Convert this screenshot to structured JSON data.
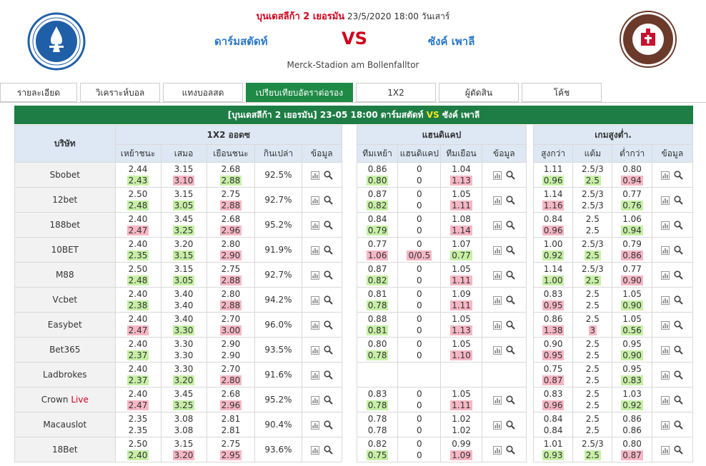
{
  "header": {
    "league": "บุนเดสลีก้า 2 เยอรมัน",
    "datetime": "23/5/2020 18:00 วันเสาร์",
    "home": "ดาร์มสตัดท์",
    "vs": "VS",
    "away": "ซังค์ เพาลี",
    "venue": "Merck-Stadion am Bollenfalltor",
    "home_logo": "darmstadt-crest-icon",
    "away_logo": "st-pauli-crest-icon"
  },
  "tabs": [
    {
      "label": "รายละเอียด",
      "active": false
    },
    {
      "label": "วิเคราะห์บอล",
      "active": false
    },
    {
      "label": "แทงบอลสด",
      "active": false
    },
    {
      "label": "เปรียบเทียบอัตราต่อรอง",
      "active": true
    },
    {
      "label": "1X2",
      "active": false
    },
    {
      "label": "ผู้ตัดสิน",
      "active": false
    },
    {
      "label": "โค้ช",
      "active": false
    }
  ],
  "title_bar": {
    "league": "[บุนเดสลีก้า 2 เยอรมัน]",
    "date": "23-05 18:00",
    "home": "ดาร์มสตัดท์",
    "vs": "VS",
    "away": "ซังค์ เพาลี"
  },
  "table": {
    "company_header": "บริษัท",
    "groups": [
      "1X2 ออดซ",
      "แฮนดิแคป",
      "เกมสูงต่ำ."
    ],
    "cols_1x2": [
      "เหย้าชนะ",
      "เสมอ",
      "เยือนชนะ",
      "กินเปล่า",
      "ข้อมูล"
    ],
    "cols_hdp": [
      "ทีมเหย้า",
      "แฮนดิแคป",
      "ทีมเยือน",
      "ข้อมูล"
    ],
    "cols_ou": [
      "สูงกว่า",
      "แต้ม",
      "ต่ำกว่า",
      "ข้อมูล"
    ],
    "live_label": "Live",
    "rows": [
      {
        "company": "Sbobet",
        "live": false,
        "x": [
          [
            "2.44",
            ""
          ],
          [
            "2.43",
            "up"
          ]
        ],
        "d": [
          [
            "3.15",
            ""
          ],
          [
            "3.10",
            "dn"
          ]
        ],
        "a": [
          [
            "2.68",
            ""
          ],
          [
            "2.88",
            "up"
          ]
        ],
        "ret": "92.5%",
        "h": [
          [
            "0.86",
            ""
          ],
          [
            "0.80",
            "up"
          ]
        ],
        "hl": [
          [
            "0",
            ""
          ],
          [
            "0",
            ""
          ]
        ],
        "ha": [
          [
            "1.04",
            ""
          ],
          [
            "1.13",
            "dn"
          ]
        ],
        "o": [
          [
            "1.11",
            ""
          ],
          [
            "0.96",
            "up"
          ]
        ],
        "ol": [
          [
            "2.5/3",
            ""
          ],
          [
            "2.5",
            "up"
          ]
        ],
        "u": [
          [
            "0.80",
            ""
          ],
          [
            "0.94",
            "dn"
          ]
        ]
      },
      {
        "company": "12bet",
        "live": false,
        "x": [
          [
            "2.50",
            ""
          ],
          [
            "2.48",
            "up"
          ]
        ],
        "d": [
          [
            "3.15",
            ""
          ],
          [
            "3.05",
            "up"
          ]
        ],
        "a": [
          [
            "2.75",
            ""
          ],
          [
            "2.88",
            "dn"
          ]
        ],
        "ret": "92.7%",
        "h": [
          [
            "0.87",
            ""
          ],
          [
            "0.82",
            "up"
          ]
        ],
        "hl": [
          [
            "0",
            ""
          ],
          [
            "0",
            ""
          ]
        ],
        "ha": [
          [
            "1.05",
            ""
          ],
          [
            "1.11",
            "dn"
          ]
        ],
        "o": [
          [
            "1.14",
            ""
          ],
          [
            "1.16",
            "dn"
          ]
        ],
        "ol": [
          [
            "2.5/3",
            ""
          ],
          [
            "2.5/3",
            ""
          ]
        ],
        "u": [
          [
            "0.77",
            ""
          ],
          [
            "0.76",
            "up"
          ]
        ]
      },
      {
        "company": "188bet",
        "live": false,
        "x": [
          [
            "2.40",
            ""
          ],
          [
            "2.47",
            "dn"
          ]
        ],
        "d": [
          [
            "3.45",
            ""
          ],
          [
            "3.25",
            "up"
          ]
        ],
        "a": [
          [
            "2.68",
            ""
          ],
          [
            "2.96",
            "dn"
          ]
        ],
        "ret": "95.2%",
        "h": [
          [
            "0.84",
            ""
          ],
          [
            "0.79",
            "up"
          ]
        ],
        "hl": [
          [
            "0",
            ""
          ],
          [
            "0",
            ""
          ]
        ],
        "ha": [
          [
            "1.08",
            ""
          ],
          [
            "1.14",
            "dn"
          ]
        ],
        "o": [
          [
            "0.84",
            ""
          ],
          [
            "0.96",
            "dn"
          ]
        ],
        "ol": [
          [
            "2.5",
            ""
          ],
          [
            "2.5",
            ""
          ]
        ],
        "u": [
          [
            "1.06",
            ""
          ],
          [
            "0.94",
            "up"
          ]
        ]
      },
      {
        "company": "10BET",
        "live": false,
        "x": [
          [
            "2.40",
            ""
          ],
          [
            "2.35",
            "up"
          ]
        ],
        "d": [
          [
            "3.20",
            ""
          ],
          [
            "3.15",
            "up"
          ]
        ],
        "a": [
          [
            "2.80",
            ""
          ],
          [
            "2.90",
            "dn"
          ]
        ],
        "ret": "91.9%",
        "h": [
          [
            "0.77",
            ""
          ],
          [
            "1.06",
            "dn"
          ]
        ],
        "hl": [
          [
            "0",
            ""
          ],
          [
            "0/0.5",
            "dn"
          ]
        ],
        "ha": [
          [
            "1.07",
            ""
          ],
          [
            "0.77",
            "up"
          ]
        ],
        "o": [
          [
            "1.00",
            ""
          ],
          [
            "0.92",
            "up"
          ]
        ],
        "ol": [
          [
            "2.5/3",
            ""
          ],
          [
            "2.5",
            "up"
          ]
        ],
        "u": [
          [
            "0.79",
            ""
          ],
          [
            "0.86",
            "dn"
          ]
        ]
      },
      {
        "company": "M88",
        "live": false,
        "x": [
          [
            "2.50",
            ""
          ],
          [
            "2.48",
            "up"
          ]
        ],
        "d": [
          [
            "3.15",
            ""
          ],
          [
            "3.05",
            "up"
          ]
        ],
        "a": [
          [
            "2.75",
            ""
          ],
          [
            "2.88",
            "dn"
          ]
        ],
        "ret": "92.7%",
        "h": [
          [
            "0.87",
            ""
          ],
          [
            "0.82",
            "up"
          ]
        ],
        "hl": [
          [
            "0",
            ""
          ],
          [
            "0",
            ""
          ]
        ],
        "ha": [
          [
            "1.05",
            ""
          ],
          [
            "1.11",
            "dn"
          ]
        ],
        "o": [
          [
            "1.14",
            ""
          ],
          [
            "1.00",
            "up"
          ]
        ],
        "ol": [
          [
            "2.5/3",
            ""
          ],
          [
            "2.5",
            "up"
          ]
        ],
        "u": [
          [
            "0.77",
            ""
          ],
          [
            "0.90",
            "dn"
          ]
        ]
      },
      {
        "company": "Vcbet",
        "live": false,
        "x": [
          [
            "2.40",
            ""
          ],
          [
            "2.38",
            "up"
          ]
        ],
        "d": [
          [
            "3.40",
            ""
          ],
          [
            "3.40",
            ""
          ]
        ],
        "a": [
          [
            "2.80",
            ""
          ],
          [
            "2.88",
            "dn"
          ]
        ],
        "ret": "94.2%",
        "h": [
          [
            "0.81",
            ""
          ],
          [
            "0.78",
            "up"
          ]
        ],
        "hl": [
          [
            "0",
            ""
          ],
          [
            "0",
            ""
          ]
        ],
        "ha": [
          [
            "1.09",
            ""
          ],
          [
            "1.11",
            "dn"
          ]
        ],
        "o": [
          [
            "0.83",
            ""
          ],
          [
            "0.95",
            "dn"
          ]
        ],
        "ol": [
          [
            "2.5",
            ""
          ],
          [
            "2.5",
            ""
          ]
        ],
        "u": [
          [
            "1.05",
            ""
          ],
          [
            "0.90",
            "up"
          ]
        ]
      },
      {
        "company": "Easybet",
        "live": false,
        "x": [
          [
            "2.40",
            ""
          ],
          [
            "2.47",
            "dn"
          ]
        ],
        "d": [
          [
            "3.40",
            ""
          ],
          [
            "3.30",
            "up"
          ]
        ],
        "a": [
          [
            "2.70",
            ""
          ],
          [
            "3.00",
            "dn"
          ]
        ],
        "ret": "96.0%",
        "h": [
          [
            "0.88",
            ""
          ],
          [
            "0.81",
            "up"
          ]
        ],
        "hl": [
          [
            "0",
            ""
          ],
          [
            "0",
            ""
          ]
        ],
        "ha": [
          [
            "1.05",
            ""
          ],
          [
            "1.13",
            "dn"
          ]
        ],
        "o": [
          [
            "0.86",
            ""
          ],
          [
            "1.38",
            "dn"
          ]
        ],
        "ol": [
          [
            "2.5",
            ""
          ],
          [
            "3",
            "dn"
          ]
        ],
        "u": [
          [
            "1.05",
            ""
          ],
          [
            "0.56",
            "up"
          ]
        ]
      },
      {
        "company": "Bet365",
        "live": false,
        "x": [
          [
            "2.40",
            ""
          ],
          [
            "2.37",
            "up"
          ]
        ],
        "d": [
          [
            "3.30",
            ""
          ],
          [
            "3.30",
            ""
          ]
        ],
        "a": [
          [
            "2.90",
            ""
          ],
          [
            "2.90",
            ""
          ]
        ],
        "ret": "93.5%",
        "h": [
          [
            "0.80",
            ""
          ],
          [
            "0.78",
            "up"
          ]
        ],
        "hl": [
          [
            "0",
            ""
          ],
          [
            "0",
            ""
          ]
        ],
        "ha": [
          [
            "1.05",
            ""
          ],
          [
            "1.10",
            "dn"
          ]
        ],
        "o": [
          [
            "0.90",
            ""
          ],
          [
            "0.95",
            "dn"
          ]
        ],
        "ol": [
          [
            "2.5",
            ""
          ],
          [
            "2.5",
            ""
          ]
        ],
        "u": [
          [
            "0.95",
            ""
          ],
          [
            "0.90",
            "up"
          ]
        ]
      },
      {
        "company": "Ladbrokes",
        "live": false,
        "x": [
          [
            "2.40",
            ""
          ],
          [
            "2.37",
            "up"
          ]
        ],
        "d": [
          [
            "3.30",
            ""
          ],
          [
            "3.20",
            "up"
          ]
        ],
        "a": [
          [
            "2.70",
            ""
          ],
          [
            "2.80",
            "dn"
          ]
        ],
        "ret": "91.6%",
        "h": null,
        "hl": null,
        "ha": null,
        "o": [
          [
            "0.75",
            ""
          ],
          [
            "0.87",
            "dn"
          ]
        ],
        "ol": [
          [
            "2.5",
            ""
          ],
          [
            "2.5",
            ""
          ]
        ],
        "u": [
          [
            "0.95",
            ""
          ],
          [
            "0.83",
            "up"
          ]
        ]
      },
      {
        "company": "Crown",
        "live": true,
        "x": [
          [
            "2.40",
            ""
          ],
          [
            "2.47",
            "dn"
          ]
        ],
        "d": [
          [
            "3.45",
            ""
          ],
          [
            "3.25",
            "up"
          ]
        ],
        "a": [
          [
            "2.68",
            ""
          ],
          [
            "2.96",
            "dn"
          ]
        ],
        "ret": "95.2%",
        "h": [
          [
            "0.83",
            ""
          ],
          [
            "0.78",
            "up"
          ]
        ],
        "hl": [
          [
            "0",
            ""
          ],
          [
            "0",
            ""
          ]
        ],
        "ha": [
          [
            "1.05",
            ""
          ],
          [
            "1.11",
            "dn"
          ]
        ],
        "o": [
          [
            "0.83",
            ""
          ],
          [
            "0.96",
            "dn"
          ]
        ],
        "ol": [
          [
            "2.5",
            ""
          ],
          [
            "2.5",
            ""
          ]
        ],
        "u": [
          [
            "1.03",
            ""
          ],
          [
            "0.92",
            "up"
          ]
        ]
      },
      {
        "company": "Macauslot",
        "live": false,
        "x": [
          [
            "2.35",
            ""
          ],
          [
            "2.35",
            ""
          ]
        ],
        "d": [
          [
            "3.08",
            ""
          ],
          [
            "3.08",
            ""
          ]
        ],
        "a": [
          [
            "2.81",
            ""
          ],
          [
            "2.81",
            ""
          ]
        ],
        "ret": "90.4%",
        "h": [
          [
            "0.78",
            ""
          ],
          [
            "0.78",
            ""
          ]
        ],
        "hl": [
          [
            "0",
            ""
          ],
          [
            "0",
            ""
          ]
        ],
        "ha": [
          [
            "1.02",
            ""
          ],
          [
            "1.02",
            ""
          ]
        ],
        "o": [
          [
            "0.84",
            ""
          ],
          [
            "0.84",
            ""
          ]
        ],
        "ol": [
          [
            "2.5",
            ""
          ],
          [
            "2.5",
            ""
          ]
        ],
        "u": [
          [
            "0.86",
            ""
          ],
          [
            "0.86",
            ""
          ]
        ]
      },
      {
        "company": "18Bet",
        "live": false,
        "x": [
          [
            "2.50",
            ""
          ],
          [
            "2.40",
            "up"
          ]
        ],
        "d": [
          [
            "3.15",
            ""
          ],
          [
            "3.20",
            "dn"
          ]
        ],
        "a": [
          [
            "2.75",
            ""
          ],
          [
            "2.95",
            "dn"
          ]
        ],
        "ret": "93.6%",
        "h": [
          [
            "0.82",
            ""
          ],
          [
            "0.75",
            "up"
          ]
        ],
        "hl": [
          [
            "0",
            ""
          ],
          [
            "0",
            ""
          ]
        ],
        "ha": [
          [
            "0.99",
            ""
          ],
          [
            "1.09",
            "dn"
          ]
        ],
        "o": [
          [
            "1.01",
            ""
          ],
          [
            "0.93",
            "up"
          ]
        ],
        "ol": [
          [
            "2.5/3",
            ""
          ],
          [
            "2.5",
            "up"
          ]
        ],
        "u": [
          [
            "0.80",
            ""
          ],
          [
            "0.87",
            "dn"
          ]
        ]
      }
    ]
  },
  "colors": {
    "green": "#1e7d45",
    "red": "#d0021b",
    "blue": "#2a78c8",
    "up": "#c7f0a6",
    "down": "#f6b7c4",
    "header_bg": "#dde8f4"
  },
  "icons": [
    "chart-icon",
    "search-icon"
  ]
}
